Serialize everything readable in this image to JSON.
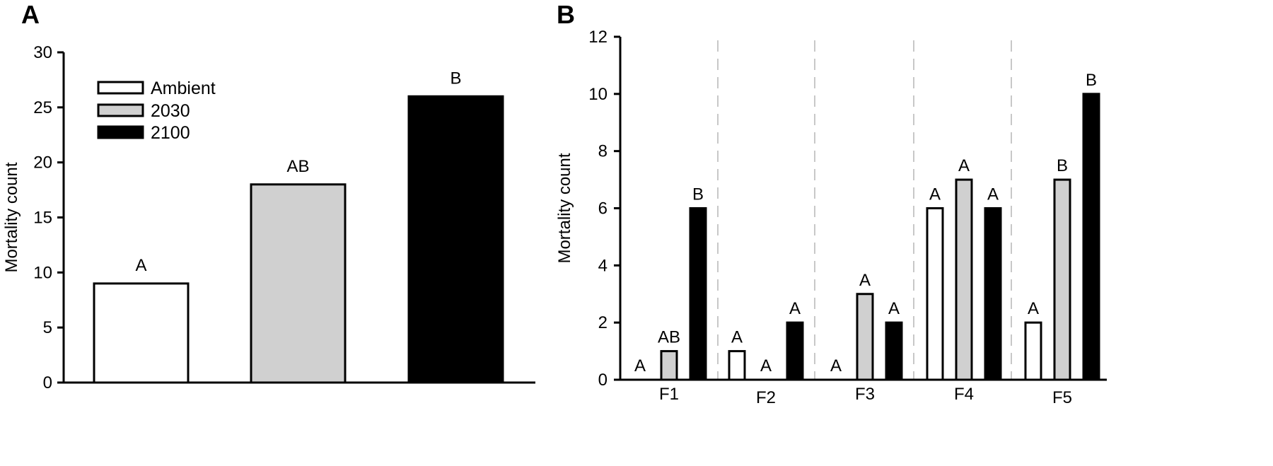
{
  "chart_data": [
    {
      "type": "bar",
      "panel_label": "A",
      "categories": [
        "Ambient",
        "2030",
        "2100"
      ],
      "values": [
        9,
        18,
        26
      ],
      "bar_labels": [
        "A",
        "AB",
        "B"
      ],
      "ylabel": "Mortality count",
      "xlabel": "",
      "ylim": [
        0,
        30
      ],
      "yticks": [
        "0",
        "5",
        "10",
        "15",
        "20",
        "25",
        "30"
      ],
      "grid": false,
      "legend": {
        "placement": "top-left",
        "entries": [
          "Ambient",
          "2030",
          "2100"
        ]
      },
      "colors": [
        "#ffffff",
        "#d0d0d0",
        "#000000"
      ]
    },
    {
      "type": "bar",
      "panel_label": "B",
      "categories": [
        "F1",
        "F2",
        "F3",
        "F4",
        "F5"
      ],
      "series": [
        {
          "values": [
            0,
            1,
            0,
            6,
            2
          ],
          "labels": [
            "A",
            "A",
            "A",
            "A",
            "A"
          ]
        },
        {
          "values": [
            1,
            0,
            3,
            7,
            7
          ],
          "labels": [
            "AB",
            "A",
            "A",
            "A",
            "B"
          ]
        },
        {
          "values": [
            6,
            2,
            2,
            6,
            10
          ],
          "labels": [
            "B",
            "A",
            "A",
            "A",
            "B"
          ]
        }
      ],
      "ylabel": "Mortality count",
      "xlabel": "",
      "ylim": [
        0,
        12
      ],
      "yticks": [
        "0",
        "2",
        "4",
        "6",
        "8",
        "10",
        "12"
      ],
      "grid": false,
      "colors": [
        "#ffffff",
        "#d0d0d0",
        "#000000"
      ],
      "separators": "dashed"
    }
  ]
}
